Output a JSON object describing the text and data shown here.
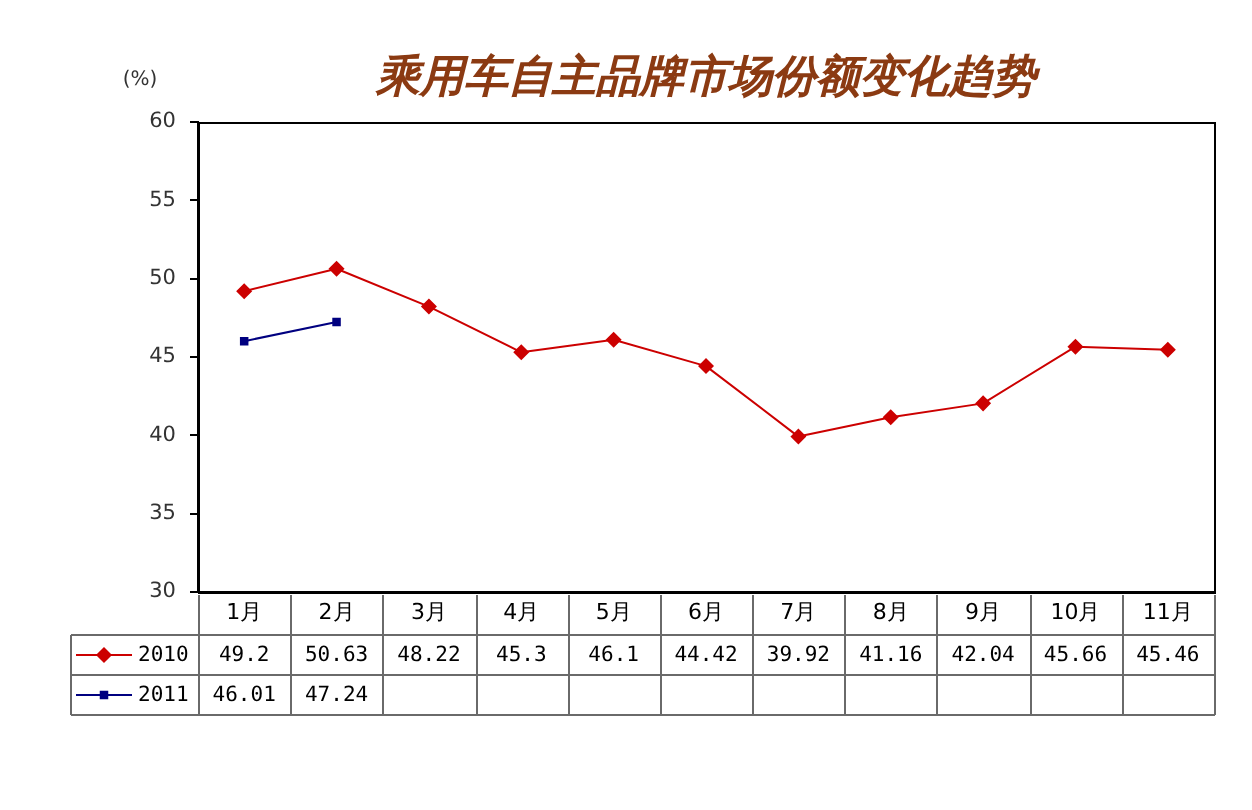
{
  "chart_data": {
    "type": "line",
    "title": "乘用车自主品牌市场份额变化趋势",
    "ylabel": "(%)",
    "categories": [
      "1月",
      "2月",
      "3月",
      "4月",
      "5月",
      "6月",
      "7月",
      "8月",
      "9月",
      "10月",
      "11月"
    ],
    "series": [
      {
        "name": "2010",
        "color": "#cc0000",
        "values": [
          49.2,
          50.63,
          48.22,
          45.3,
          46.1,
          44.42,
          39.92,
          41.16,
          42.04,
          45.66,
          45.46
        ]
      },
      {
        "name": "2011",
        "color": "#000080",
        "marker": "square",
        "values": [
          46.01,
          47.24,
          null,
          null,
          null,
          null,
          null,
          null,
          null,
          null,
          null
        ]
      }
    ],
    "ylim": [
      30,
      60
    ],
    "yticks": [
      30,
      35,
      40,
      45,
      50,
      55,
      60
    ],
    "marker": "diamond",
    "legend": "bottom left",
    "data_labels": true
  }
}
